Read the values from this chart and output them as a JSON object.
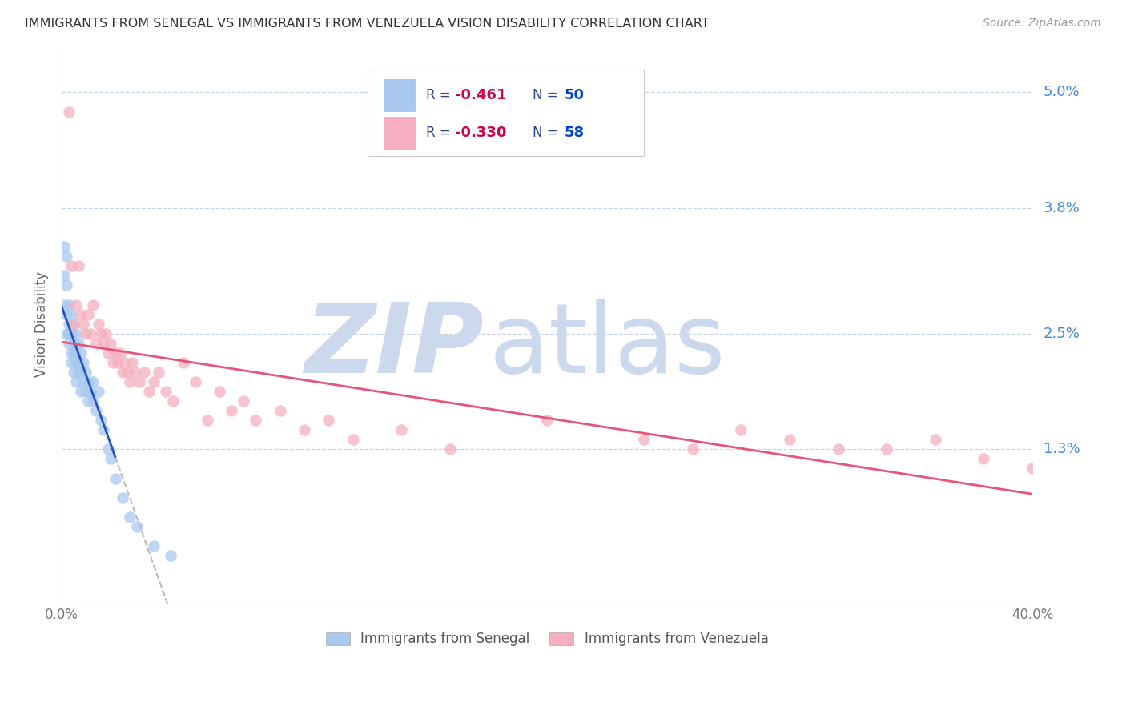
{
  "title": "IMMIGRANTS FROM SENEGAL VS IMMIGRANTS FROM VENEZUELA VISION DISABILITY CORRELATION CHART",
  "source": "Source: ZipAtlas.com",
  "ylabel": "Vision Disability",
  "xlim": [
    0.0,
    0.4
  ],
  "ylim": [
    -0.003,
    0.055
  ],
  "legend_r_senegal": "-0.461",
  "legend_n_senegal": "50",
  "legend_r_venezuela": "-0.330",
  "legend_n_venezuela": "58",
  "color_senegal": "#a8c8f0",
  "color_venezuela": "#f5afc0",
  "color_line_senegal": "#2255bb",
  "color_line_venezuela": "#e8537a",
  "color_title": "#333333",
  "color_source": "#999999",
  "color_ytick_labels": "#4488dd",
  "color_legend_r": "#cc0044",
  "color_legend_n": "#0044cc",
  "background_color": "#ffffff",
  "watermark_zip_color": "#ccd8ec",
  "watermark_atlas_color": "#ccd8ec",
  "senegal_x": [
    0.001,
    0.001,
    0.001,
    0.002,
    0.002,
    0.002,
    0.002,
    0.003,
    0.003,
    0.003,
    0.003,
    0.004,
    0.004,
    0.004,
    0.004,
    0.005,
    0.005,
    0.005,
    0.005,
    0.006,
    0.006,
    0.006,
    0.006,
    0.007,
    0.007,
    0.007,
    0.008,
    0.008,
    0.008,
    0.009,
    0.009,
    0.01,
    0.01,
    0.011,
    0.011,
    0.012,
    0.013,
    0.013,
    0.014,
    0.015,
    0.016,
    0.017,
    0.019,
    0.02,
    0.022,
    0.025,
    0.028,
    0.031,
    0.038,
    0.045
  ],
  "senegal_y": [
    0.034,
    0.031,
    0.028,
    0.033,
    0.03,
    0.027,
    0.025,
    0.028,
    0.026,
    0.025,
    0.024,
    0.027,
    0.025,
    0.023,
    0.022,
    0.026,
    0.024,
    0.023,
    0.021,
    0.025,
    0.023,
    0.022,
    0.02,
    0.024,
    0.022,
    0.021,
    0.023,
    0.021,
    0.019,
    0.022,
    0.02,
    0.021,
    0.019,
    0.02,
    0.018,
    0.019,
    0.02,
    0.018,
    0.017,
    0.019,
    0.016,
    0.015,
    0.013,
    0.012,
    0.01,
    0.008,
    0.006,
    0.005,
    0.003,
    0.002
  ],
  "venezuela_x": [
    0.003,
    0.004,
    0.005,
    0.006,
    0.007,
    0.008,
    0.009,
    0.01,
    0.011,
    0.012,
    0.013,
    0.014,
    0.015,
    0.016,
    0.017,
    0.018,
    0.019,
    0.02,
    0.021,
    0.022,
    0.023,
    0.024,
    0.025,
    0.026,
    0.027,
    0.028,
    0.029,
    0.03,
    0.032,
    0.034,
    0.036,
    0.038,
    0.04,
    0.043,
    0.046,
    0.05,
    0.055,
    0.06,
    0.065,
    0.07,
    0.075,
    0.08,
    0.09,
    0.1,
    0.11,
    0.12,
    0.14,
    0.16,
    0.2,
    0.24,
    0.26,
    0.28,
    0.3,
    0.32,
    0.34,
    0.36,
    0.38,
    0.4
  ],
  "venezuela_y": [
    0.048,
    0.032,
    0.026,
    0.028,
    0.032,
    0.027,
    0.026,
    0.025,
    0.027,
    0.025,
    0.028,
    0.024,
    0.026,
    0.025,
    0.024,
    0.025,
    0.023,
    0.024,
    0.022,
    0.023,
    0.022,
    0.023,
    0.021,
    0.022,
    0.021,
    0.02,
    0.022,
    0.021,
    0.02,
    0.021,
    0.019,
    0.02,
    0.021,
    0.019,
    0.018,
    0.022,
    0.02,
    0.016,
    0.019,
    0.017,
    0.018,
    0.016,
    0.017,
    0.015,
    0.016,
    0.014,
    0.015,
    0.013,
    0.016,
    0.014,
    0.013,
    0.015,
    0.014,
    0.013,
    0.013,
    0.014,
    0.012,
    0.011
  ],
  "ytick_vals": [
    0.013,
    0.025,
    0.038,
    0.05
  ],
  "ytick_labels": [
    "1.3%",
    "2.5%",
    "3.8%",
    "5.0%"
  ]
}
